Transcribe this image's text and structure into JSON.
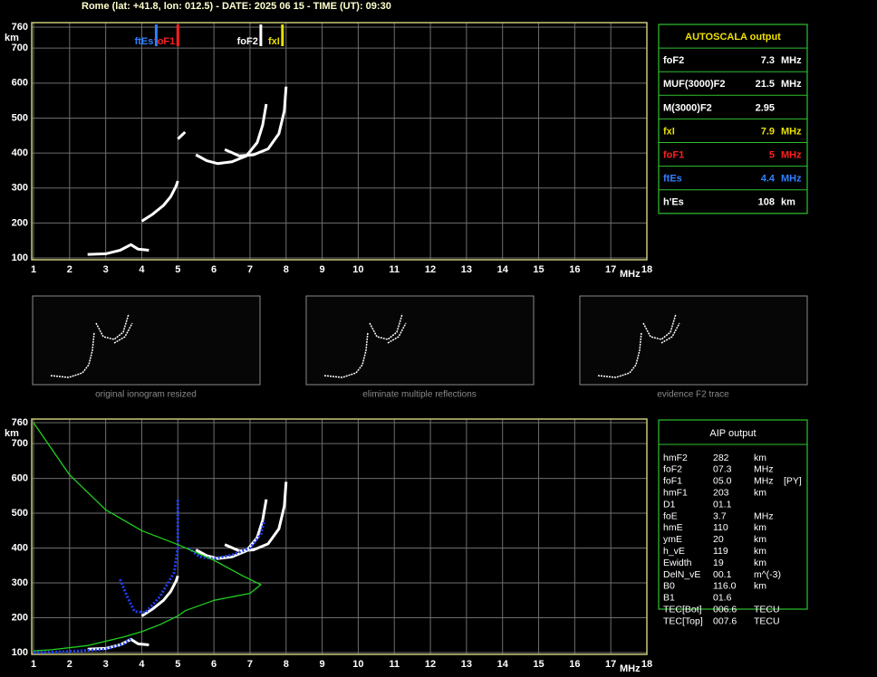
{
  "header": {
    "title": "Rome (lat: +41.8, lon: 012.5) - DATE: 2025 06 15 - TIME (UT): 09:30"
  },
  "chart_data": [
    {
      "type": "line",
      "x_label": "MHz",
      "y_label": "km",
      "xlim": [
        1,
        18
      ],
      "ylim": [
        100,
        760
      ],
      "xticks": [
        1,
        2,
        3,
        4,
        5,
        6,
        7,
        8,
        9,
        10,
        11,
        12,
        13,
        14,
        15,
        16,
        17,
        18
      ],
      "yticks": [
        100,
        200,
        300,
        400,
        500,
        600,
        700,
        760
      ],
      "grid": true,
      "series": [
        {
          "color": "#ffffff",
          "x": [
            2.5,
            3.0,
            3.4,
            3.7,
            3.9,
            4.2
          ],
          "values": [
            110,
            112,
            122,
            138,
            125,
            122
          ]
        },
        {
          "color": "#ffffff",
          "x": [
            4.0,
            4.3,
            4.6,
            4.8,
            4.95,
            5.0
          ],
          "values": [
            205,
            225,
            250,
            275,
            305,
            320
          ]
        },
        {
          "color": "#ffffff",
          "x": [
            5.0,
            5.2
          ],
          "values": [
            440,
            460
          ]
        },
        {
          "color": "#ffffff",
          "x": [
            5.5,
            5.8,
            6.1,
            6.5,
            6.9,
            7.2,
            7.35,
            7.45
          ],
          "values": [
            395,
            378,
            370,
            375,
            392,
            430,
            480,
            540
          ]
        },
        {
          "color": "#ffffff",
          "x": [
            6.3,
            6.7,
            7.1,
            7.5,
            7.8,
            7.95,
            8.0
          ],
          "values": [
            410,
            392,
            395,
            412,
            455,
            520,
            590
          ]
        }
      ]
    },
    {
      "type": "line",
      "x_label": "MHz",
      "y_label": "km",
      "xlim": [
        1,
        18
      ],
      "ylim": [
        100,
        760
      ],
      "xticks": [
        1,
        2,
        3,
        4,
        5,
        6,
        7,
        8,
        9,
        10,
        11,
        12,
        13,
        14,
        15,
        16,
        17,
        18
      ],
      "yticks": [
        100,
        200,
        300,
        400,
        500,
        600,
        700,
        760
      ],
      "grid": true,
      "series": [
        {
          "color": "#ffffff",
          "x": [
            2.5,
            3.0,
            3.4,
            3.7,
            3.9,
            4.2
          ],
          "values": [
            110,
            112,
            122,
            138,
            125,
            122
          ]
        },
        {
          "color": "#ffffff",
          "x": [
            4.0,
            4.3,
            4.6,
            4.8,
            4.95,
            5.0
          ],
          "values": [
            205,
            225,
            250,
            275,
            305,
            320
          ]
        },
        {
          "color": "#ffffff",
          "x": [
            5.5,
            5.8,
            6.1,
            6.5,
            6.9,
            7.2,
            7.35,
            7.45
          ],
          "values": [
            395,
            378,
            370,
            375,
            392,
            430,
            480,
            540
          ]
        },
        {
          "color": "#ffffff",
          "x": [
            6.3,
            6.7,
            7.1,
            7.5,
            7.8,
            7.95,
            8.0
          ],
          "values": [
            410,
            392,
            395,
            412,
            455,
            520,
            590
          ]
        },
        {
          "color": "#2040ff",
          "x": [
            1.0,
            2.0,
            3.0,
            3.5,
            3.7
          ],
          "values": [
            100,
            103,
            110,
            125,
            140
          ]
        },
        {
          "color": "#2040ff",
          "x": [
            3.4,
            3.6,
            3.8,
            4.1,
            4.5,
            4.9,
            5.0,
            5.0
          ],
          "values": [
            310,
            260,
            218,
            215,
            260,
            330,
            400,
            540
          ]
        },
        {
          "color": "#2040ff",
          "x": [
            5.3,
            5.6,
            6.0,
            6.5,
            7.0,
            7.3,
            7.4
          ],
          "values": [
            400,
            375,
            370,
            380,
            400,
            440,
            480
          ]
        },
        {
          "color": "#20d020",
          "x": [
            1.0,
            2.0,
            3.0,
            4.0,
            5.0,
            6.0,
            6.8,
            7.3,
            7.0,
            6.0,
            5.2,
            5.0,
            4.5,
            4.0,
            3.5,
            2.5,
            1.5,
            1.0
          ],
          "values": [
            760,
            610,
            510,
            450,
            410,
            365,
            320,
            295,
            270,
            250,
            220,
            205,
            180,
            160,
            145,
            120,
            108,
            105
          ]
        }
      ]
    }
  ],
  "autoscala": {
    "title": "AUTOSCALA output",
    "rows": [
      {
        "label": "foF2",
        "value": 7.3,
        "unit": "MHz",
        "color": "#ffffff"
      },
      {
        "label": "MUF(3000)F2",
        "value": 21.5,
        "unit": "MHz",
        "color": "#ffffff"
      },
      {
        "label": "M(3000)F2",
        "value": 2.95,
        "color": "#ffffff"
      },
      {
        "label": "fxI",
        "value": 7.9,
        "unit": "MHz",
        "color": "#e8e000"
      },
      {
        "label": "foF1",
        "value": 5.0,
        "unit": "MHz",
        "color": "#ff2020"
      },
      {
        "label": "ftEs",
        "value": 4.4,
        "unit": "MHz",
        "color": "#3080ff"
      },
      {
        "label": "h'Es",
        "value": 108,
        "unit": "km",
        "color": "#ffffff"
      }
    ]
  },
  "thumbnails": [
    {
      "caption": "original ionogram resized"
    },
    {
      "caption": "eliminate multiple reflections"
    },
    {
      "caption": "evidence F2 trace"
    }
  ],
  "aip": {
    "title": "AIP output",
    "rows": [
      [
        "hmF2",
        "282",
        "km"
      ],
      [
        "foF2",
        "07.3",
        "MHz"
      ],
      [
        "foF1",
        "05.0",
        "MHz",
        "[PY]"
      ],
      [
        "hmF1",
        "203",
        "km"
      ],
      [
        "D1",
        "01.1"
      ],
      [
        "foE",
        "3.7",
        "MHz"
      ],
      [
        "hmE",
        "110",
        "km"
      ],
      [
        "ymE",
        "20",
        "km"
      ],
      [
        "h_vE",
        "119",
        "km"
      ],
      [
        "Ewidth",
        "19",
        "km"
      ],
      [
        "DelN_vE",
        "00.1",
        "m^(-3)"
      ],
      [
        "B0",
        "116.0",
        "km"
      ],
      [
        "B1",
        "01.6"
      ],
      [
        "TEC[Bot]",
        "006.6",
        "TECU"
      ],
      [
        "TEC[Top]",
        "007.6",
        "TECU"
      ]
    ]
  }
}
